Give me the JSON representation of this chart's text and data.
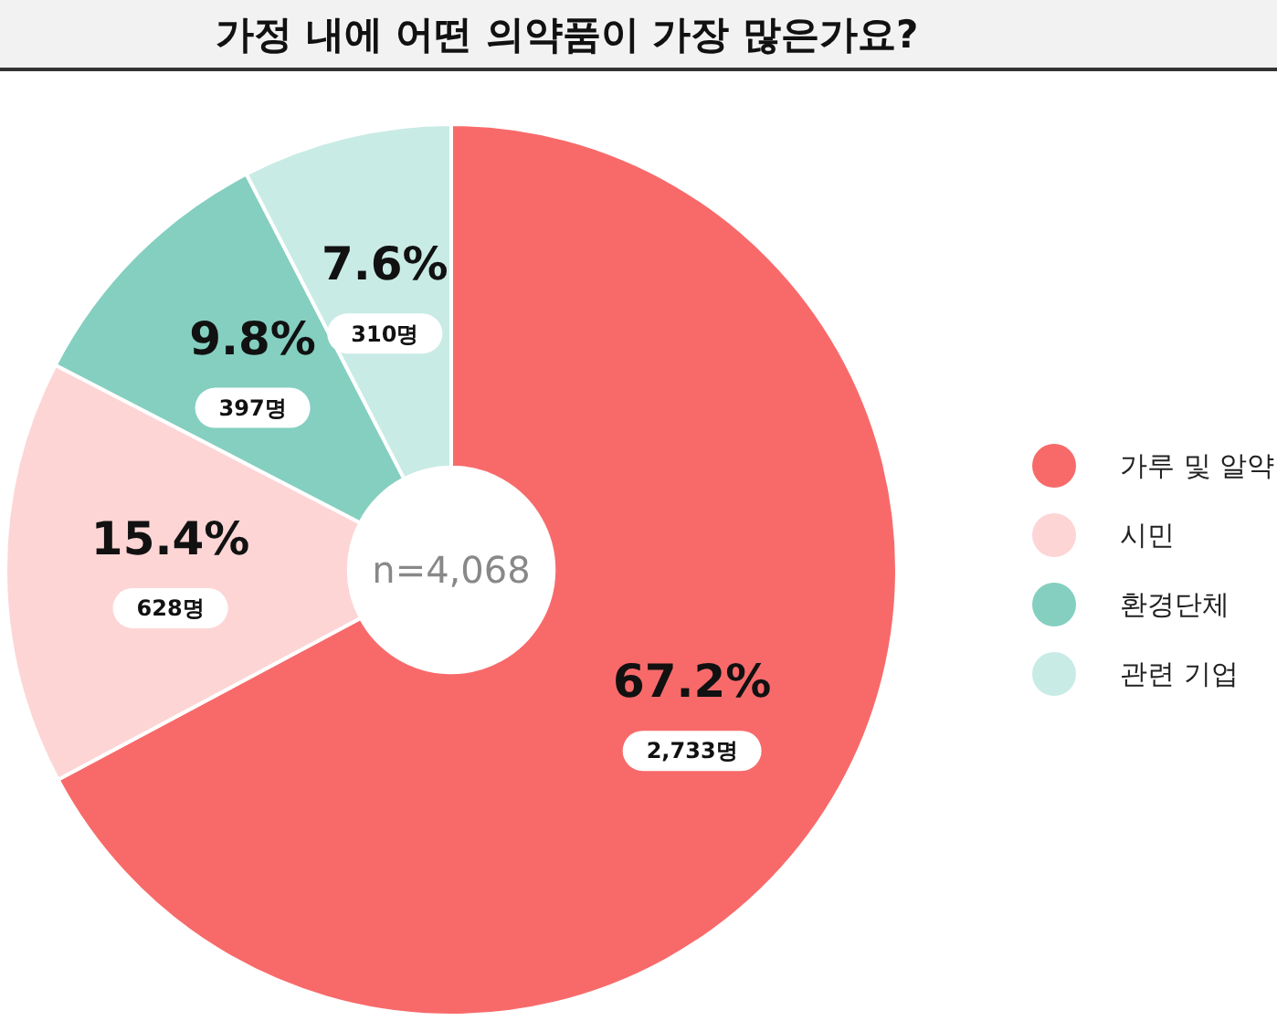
{
  "chart_data": {
    "type": "donut",
    "title": "가정 내에 어떤 의약품이 가장 많은가요?",
    "categories": [
      "가루 및 알약",
      "시민",
      "환경단체",
      "관련 기업"
    ],
    "values": [
      67.2,
      15.4,
      9.8,
      7.6
    ],
    "value_labels": [
      "67.2%",
      "15.4%",
      "9.8%",
      "7.6%"
    ],
    "colors": [
      "#f86a6a",
      "#fdd5d5",
      "#84cfc0",
      "#c9ebe5"
    ],
    "annotations": [
      {
        "text": "2,733명",
        "x": "가루 및 알약"
      },
      {
        "text": "628명",
        "x": "시민"
      },
      {
        "text": "397명",
        "x": "환경단체"
      },
      {
        "text": "310명",
        "x": "관련 기업"
      },
      "n=4,068"
    ],
    "legend": "right"
  }
}
